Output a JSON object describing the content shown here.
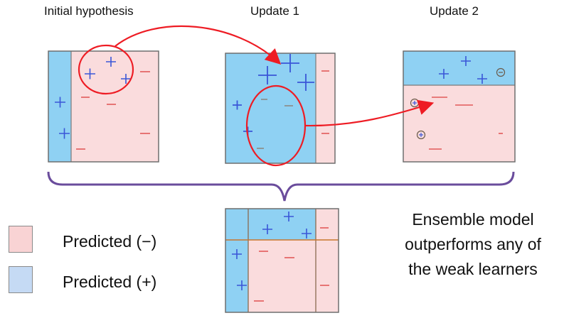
{
  "panels": {
    "initial": {
      "title": "Initial hypothesis"
    },
    "update1": {
      "title": "Update 1"
    },
    "update2": {
      "title": "Update 2"
    }
  },
  "symbols": {
    "plus": "+",
    "minus": "−"
  },
  "legend": {
    "items": [
      {
        "label": "Predicted (−)",
        "color": "#f9d3d4"
      },
      {
        "label": "Predicted (+)",
        "color": "#c5daf4"
      }
    ]
  },
  "ensemble_caption": {
    "lines": [
      "Ensemble model",
      "outperforms any of",
      "the weak learners"
    ]
  },
  "colors": {
    "blue_region": "#8fd1f3",
    "pink_region": "#fadcdd",
    "plus_mark": "#3a56d8",
    "minus_mark": "#e25a5a",
    "arrow": "#ee1c24",
    "brace": "#6a4c9c"
  }
}
